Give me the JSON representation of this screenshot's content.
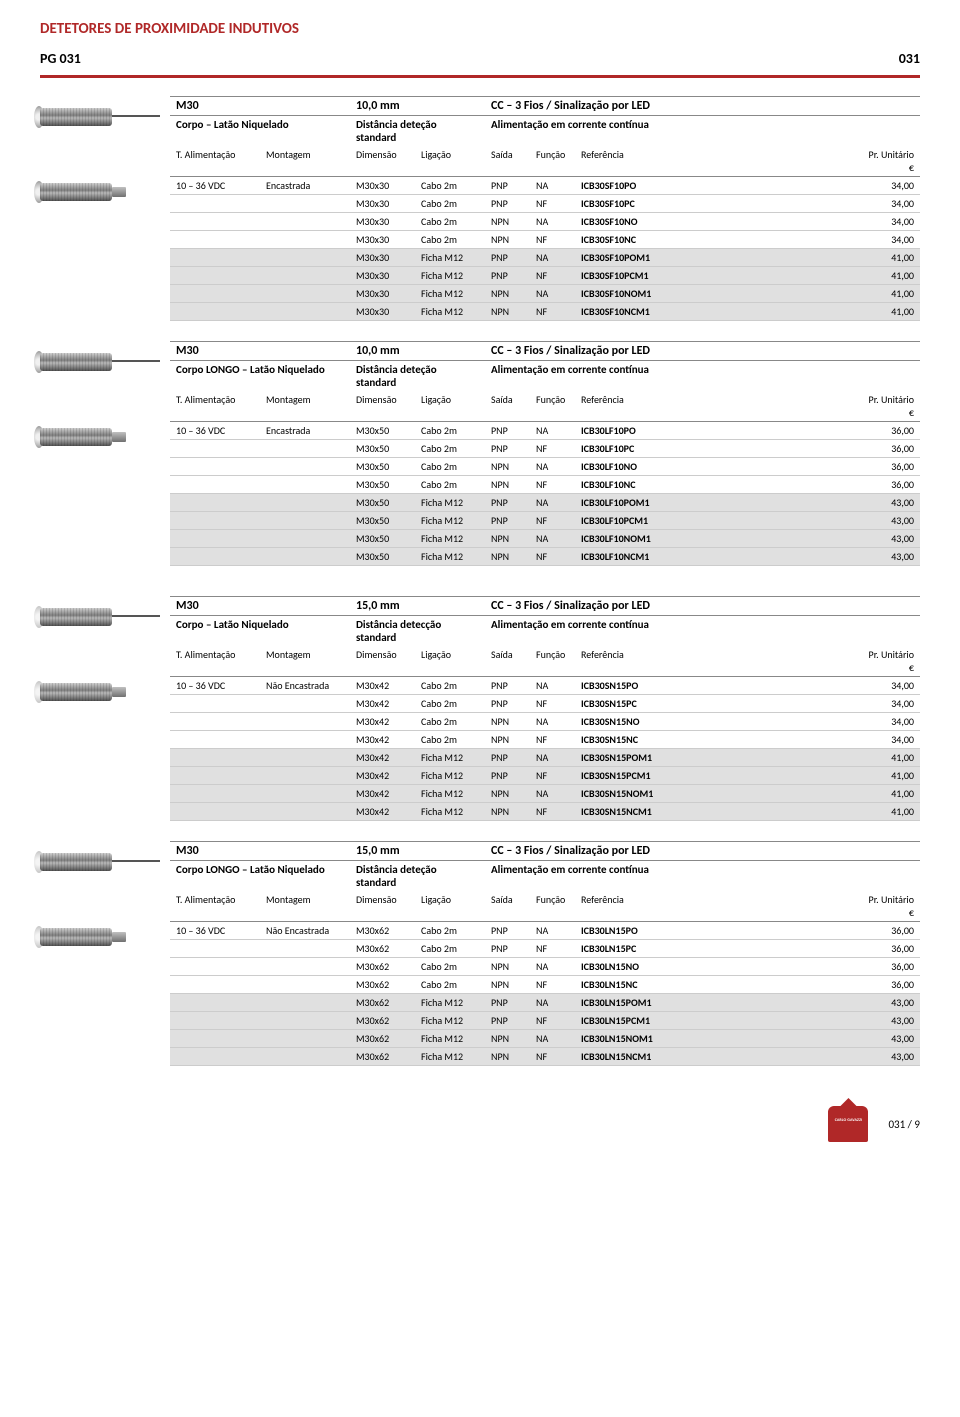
{
  "title": "DETETORES DE PROXIMIDADE INDUTIVOS",
  "pg_left": "PG 031",
  "pg_right": "031",
  "col_labels": {
    "ta": "T. Alimentação",
    "mont": "Montagem",
    "dim": "Dimensão",
    "lig": "Ligação",
    "sai": "Saída",
    "fun": "Função",
    "ref": "Referência",
    "pr": "Pr. Unitário",
    "eur": "€"
  },
  "sections": [
    {
      "h1": "M30",
      "h2": "10,0 mm",
      "h3": "CC – 3 Fios / Sinalização por LED",
      "s1": "Corpo – Latão Niquelado",
      "s2": "Distância deteção standard",
      "s3": "Alimentação em corrente contínua",
      "ta": "10 – 36 VDC",
      "mont": "Encastrada",
      "tip": "brass",
      "rows": [
        {
          "dim": "M30x30",
          "lig": "Cabo 2m",
          "sai": "PNP",
          "fun": "NA",
          "ref": "ICB30SF10PO",
          "pr": "34,00",
          "hl": false,
          "cable": true
        },
        {
          "dim": "M30x30",
          "lig": "Cabo 2m",
          "sai": "PNP",
          "fun": "NF",
          "ref": "ICB30SF10PC",
          "pr": "34,00",
          "hl": false
        },
        {
          "dim": "M30x30",
          "lig": "Cabo 2m",
          "sai": "NPN",
          "fun": "NA",
          "ref": "ICB30SF10NO",
          "pr": "34,00",
          "hl": false
        },
        {
          "dim": "M30x30",
          "lig": "Cabo 2m",
          "sai": "NPN",
          "fun": "NF",
          "ref": "ICB30SF10NC",
          "pr": "34,00",
          "hl": false
        },
        {
          "dim": "M30x30",
          "lig": "Ficha M12",
          "sai": "PNP",
          "fun": "NA",
          "ref": "ICB30SF10POM1",
          "pr": "41,00",
          "hl": true,
          "conn": true
        },
        {
          "dim": "M30x30",
          "lig": "Ficha M12",
          "sai": "PNP",
          "fun": "NF",
          "ref": "ICB30SF10PCM1",
          "pr": "41,00",
          "hl": true
        },
        {
          "dim": "M30x30",
          "lig": "Ficha M12",
          "sai": "NPN",
          "fun": "NA",
          "ref": "ICB30SF10NOM1",
          "pr": "41,00",
          "hl": true
        },
        {
          "dim": "M30x30",
          "lig": "Ficha M12",
          "sai": "NPN",
          "fun": "NF",
          "ref": "ICB30SF10NCM1",
          "pr": "41,00",
          "hl": true
        }
      ]
    },
    {
      "h1": "M30",
      "h2": "10,0 mm",
      "h3": "CC – 3 Fios / Sinalização por LED",
      "s1": "Corpo LONGO – Latão Niquelado",
      "s2": "Distância deteção standard",
      "s3": "Alimentação em corrente contínua",
      "ta": "10 – 36 VDC",
      "mont": "Encastrada",
      "tip": "brass",
      "rows": [
        {
          "dim": "M30x50",
          "lig": "Cabo 2m",
          "sai": "PNP",
          "fun": "NA",
          "ref": "ICB30LF10PO",
          "pr": "36,00",
          "hl": false,
          "cable": true
        },
        {
          "dim": "M30x50",
          "lig": "Cabo 2m",
          "sai": "PNP",
          "fun": "NF",
          "ref": "ICB30LF10PC",
          "pr": "36,00",
          "hl": false
        },
        {
          "dim": "M30x50",
          "lig": "Cabo 2m",
          "sai": "NPN",
          "fun": "NA",
          "ref": "ICB30LF10NO",
          "pr": "36,00",
          "hl": false
        },
        {
          "dim": "M30x50",
          "lig": "Cabo 2m",
          "sai": "NPN",
          "fun": "NF",
          "ref": "ICB30LF10NC",
          "pr": "36,00",
          "hl": false
        },
        {
          "dim": "M30x50",
          "lig": "Ficha M12",
          "sai": "PNP",
          "fun": "NA",
          "ref": "ICB30LF10POM1",
          "pr": "43,00",
          "hl": true,
          "conn": true
        },
        {
          "dim": "M30x50",
          "lig": "Ficha M12",
          "sai": "PNP",
          "fun": "NF",
          "ref": "ICB30LF10PCM1",
          "pr": "43,00",
          "hl": true
        },
        {
          "dim": "M30x50",
          "lig": "Ficha M12",
          "sai": "NPN",
          "fun": "NA",
          "ref": "ICB30LF10NOM1",
          "pr": "43,00",
          "hl": true
        },
        {
          "dim": "M30x50",
          "lig": "Ficha M12",
          "sai": "NPN",
          "fun": "NF",
          "ref": "ICB30LF10NCM1",
          "pr": "43,00",
          "hl": true
        }
      ]
    },
    {
      "h1": "M30",
      "h2": "15,0 mm",
      "h3": "CC – 3 Fios / Sinalização por LED",
      "s1": "Corpo – Latão Niquelado",
      "s2": "Distância detecção standard",
      "s3": "Alimentação em corrente contínua",
      "ta": "10 – 36 VDC",
      "mont": "Não Encastrada",
      "tip": "nobrass",
      "gap": true,
      "rows": [
        {
          "dim": "M30x42",
          "lig": "Cabo 2m",
          "sai": "PNP",
          "fun": "NA",
          "ref": "ICB30SN15PO",
          "pr": "34,00",
          "hl": false,
          "cable": true
        },
        {
          "dim": "M30x42",
          "lig": "Cabo 2m",
          "sai": "PNP",
          "fun": "NF",
          "ref": "ICB30SN15PC",
          "pr": "34,00",
          "hl": false
        },
        {
          "dim": "M30x42",
          "lig": "Cabo 2m",
          "sai": "NPN",
          "fun": "NA",
          "ref": "ICB30SN15NO",
          "pr": "34,00",
          "hl": false
        },
        {
          "dim": "M30x42",
          "lig": "Cabo 2m",
          "sai": "NPN",
          "fun": "NF",
          "ref": "ICB30SN15NC",
          "pr": "34,00",
          "hl": false
        },
        {
          "dim": "M30x42",
          "lig": "Ficha M12",
          "sai": "PNP",
          "fun": "NA",
          "ref": "ICB30SN15POM1",
          "pr": "41,00",
          "hl": true,
          "conn": true
        },
        {
          "dim": "M30x42",
          "lig": "Ficha M12",
          "sai": "PNP",
          "fun": "NF",
          "ref": "ICB30SN15PCM1",
          "pr": "41,00",
          "hl": true
        },
        {
          "dim": "M30x42",
          "lig": "Ficha M12",
          "sai": "NPN",
          "fun": "NA",
          "ref": "ICB30SN15NOM1",
          "pr": "41,00",
          "hl": true
        },
        {
          "dim": "M30x42",
          "lig": "Ficha M12",
          "sai": "NPN",
          "fun": "NF",
          "ref": "ICB30SN15NCM1",
          "pr": "41,00",
          "hl": true
        }
      ]
    },
    {
      "h1": "M30",
      "h2": "15,0 mm",
      "h3": "CC – 3 Fios / Sinalização por LED",
      "s1": "Corpo LONGO – Latão Niquelado",
      "s2": "Distância deteção standard",
      "s3": "Alimentação em corrente contínua",
      "ta": "10 – 36 VDC",
      "mont": "Não Encastrada",
      "tip": "nobrass",
      "rows": [
        {
          "dim": "M30x62",
          "lig": "Cabo 2m",
          "sai": "PNP",
          "fun": "NA",
          "ref": "ICB30LN15PO",
          "pr": "36,00",
          "hl": false,
          "cable": true
        },
        {
          "dim": "M30x62",
          "lig": "Cabo 2m",
          "sai": "PNP",
          "fun": "NF",
          "ref": "ICB30LN15PC",
          "pr": "36,00",
          "hl": false
        },
        {
          "dim": "M30x62",
          "lig": "Cabo 2m",
          "sai": "NPN",
          "fun": "NA",
          "ref": "ICB30LN15NO",
          "pr": "36,00",
          "hl": false
        },
        {
          "dim": "M30x62",
          "lig": "Cabo 2m",
          "sai": "NPN",
          "fun": "NF",
          "ref": "ICB30LN15NC",
          "pr": "36,00",
          "hl": false
        },
        {
          "dim": "M30x62",
          "lig": "Ficha M12",
          "sai": "PNP",
          "fun": "NA",
          "ref": "ICB30LN15POM1",
          "pr": "43,00",
          "hl": true,
          "conn": true
        },
        {
          "dim": "M30x62",
          "lig": "Ficha M12",
          "sai": "PNP",
          "fun": "NF",
          "ref": "ICB30LN15PCM1",
          "pr": "43,00",
          "hl": true
        },
        {
          "dim": "M30x62",
          "lig": "Ficha M12",
          "sai": "NPN",
          "fun": "NA",
          "ref": "ICB30LN15NOM1",
          "pr": "43,00",
          "hl": true
        },
        {
          "dim": "M30x62",
          "lig": "Ficha M12",
          "sai": "NPN",
          "fun": "NF",
          "ref": "ICB30LN15NCM1",
          "pr": "43,00",
          "hl": true
        }
      ]
    }
  ],
  "footer_page": "031 / 9"
}
